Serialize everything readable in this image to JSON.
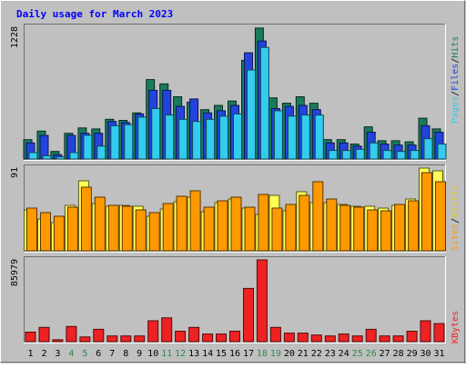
{
  "chart_data": [
    {
      "type": "bar",
      "title": "Daily usage for March 2023",
      "y_max_label": "1228",
      "ylim": [
        0,
        1228
      ],
      "categories": [
        "1",
        "2",
        "3",
        "4",
        "5",
        "6",
        "7",
        "8",
        "9",
        "10",
        "11",
        "12",
        "13",
        "14",
        "15",
        "16",
        "17",
        "18",
        "19",
        "20",
        "21",
        "22",
        "23",
        "24",
        "25",
        "26",
        "27",
        "28",
        "29",
        "30",
        "31"
      ],
      "weekend_days": [
        "4",
        "5",
        "11",
        "12",
        "18",
        "19",
        "25",
        "26"
      ],
      "legend": {
        "pages": "Pages",
        "files": "Files",
        "hits": "Hits",
        "sep": "/"
      },
      "series": [
        {
          "name": "Hits",
          "color": "#1a7a5e",
          "values": [
            180,
            260,
            70,
            240,
            290,
            280,
            370,
            360,
            430,
            740,
            700,
            580,
            530,
            460,
            500,
            540,
            920,
            1220,
            570,
            520,
            580,
            520,
            180,
            180,
            140,
            300,
            170,
            170,
            160,
            380,
            280
          ]
        },
        {
          "name": "Files",
          "color": "#2244dd",
          "values": [
            150,
            220,
            40,
            220,
            240,
            240,
            350,
            340,
            420,
            640,
            640,
            490,
            560,
            430,
            450,
            500,
            990,
            1100,
            470,
            490,
            500,
            460,
            150,
            150,
            120,
            250,
            140,
            130,
            130,
            310,
            250
          ]
        },
        {
          "name": "Pages",
          "color": "#33ccee",
          "values": [
            60,
            30,
            20,
            60,
            220,
            120,
            310,
            320,
            390,
            470,
            410,
            370,
            350,
            370,
            400,
            420,
            830,
            1040,
            450,
            400,
            410,
            410,
            80,
            80,
            90,
            150,
            80,
            70,
            80,
            190,
            140
          ]
        }
      ]
    },
    {
      "type": "bar",
      "y_max_label": "91",
      "ylim": [
        0,
        91
      ],
      "categories": [
        "1",
        "2",
        "3",
        "4",
        "5",
        "6",
        "7",
        "8",
        "9",
        "10",
        "11",
        "12",
        "13",
        "14",
        "15",
        "16",
        "17",
        "18",
        "19",
        "20",
        "21",
        "22",
        "23",
        "24",
        "25",
        "26",
        "27",
        "28",
        "29",
        "30",
        "31"
      ],
      "legend": {
        "sites": "Sites",
        "visits": "Visits",
        "sep": "/"
      },
      "series": [
        {
          "name": "Visits",
          "color": "#ffff55",
          "values": [
            45,
            35,
            31,
            50,
            77,
            52,
            49,
            50,
            49,
            38,
            46,
            54,
            59,
            43,
            53,
            57,
            47,
            40,
            61,
            44,
            65,
            53,
            53,
            51,
            49,
            49,
            47,
            50,
            57,
            91,
            88
          ]
        },
        {
          "name": "Sites",
          "color": "#ff9900",
          "values": [
            47,
            42,
            38,
            48,
            70,
            59,
            50,
            49,
            45,
            42,
            52,
            60,
            66,
            48,
            55,
            59,
            48,
            62,
            47,
            51,
            61,
            76,
            57,
            50,
            48,
            45,
            44,
            51,
            55,
            86,
            76
          ]
        }
      ]
    },
    {
      "type": "bar",
      "y_max_label": "85979",
      "ylim": [
        0,
        85979
      ],
      "categories": [
        "1",
        "2",
        "3",
        "4",
        "5",
        "6",
        "7",
        "8",
        "9",
        "10",
        "11",
        "12",
        "13",
        "14",
        "15",
        "16",
        "17",
        "18",
        "19",
        "20",
        "21",
        "22",
        "23",
        "24",
        "25",
        "26",
        "27",
        "28",
        "29",
        "30",
        "31"
      ],
      "legend": {
        "kbytes": "KBytes"
      },
      "series": [
        {
          "name": "KBytes",
          "color": "#ee2222",
          "values": [
            10000,
            15000,
            2000,
            16000,
            5000,
            13000,
            6000,
            6000,
            6000,
            22000,
            25000,
            11000,
            15000,
            8000,
            8000,
            11000,
            56000,
            85979,
            15000,
            9000,
            9000,
            7000,
            6000,
            8000,
            6000,
            13000,
            6000,
            6000,
            11000,
            22000,
            19000
          ]
        }
      ]
    }
  ]
}
